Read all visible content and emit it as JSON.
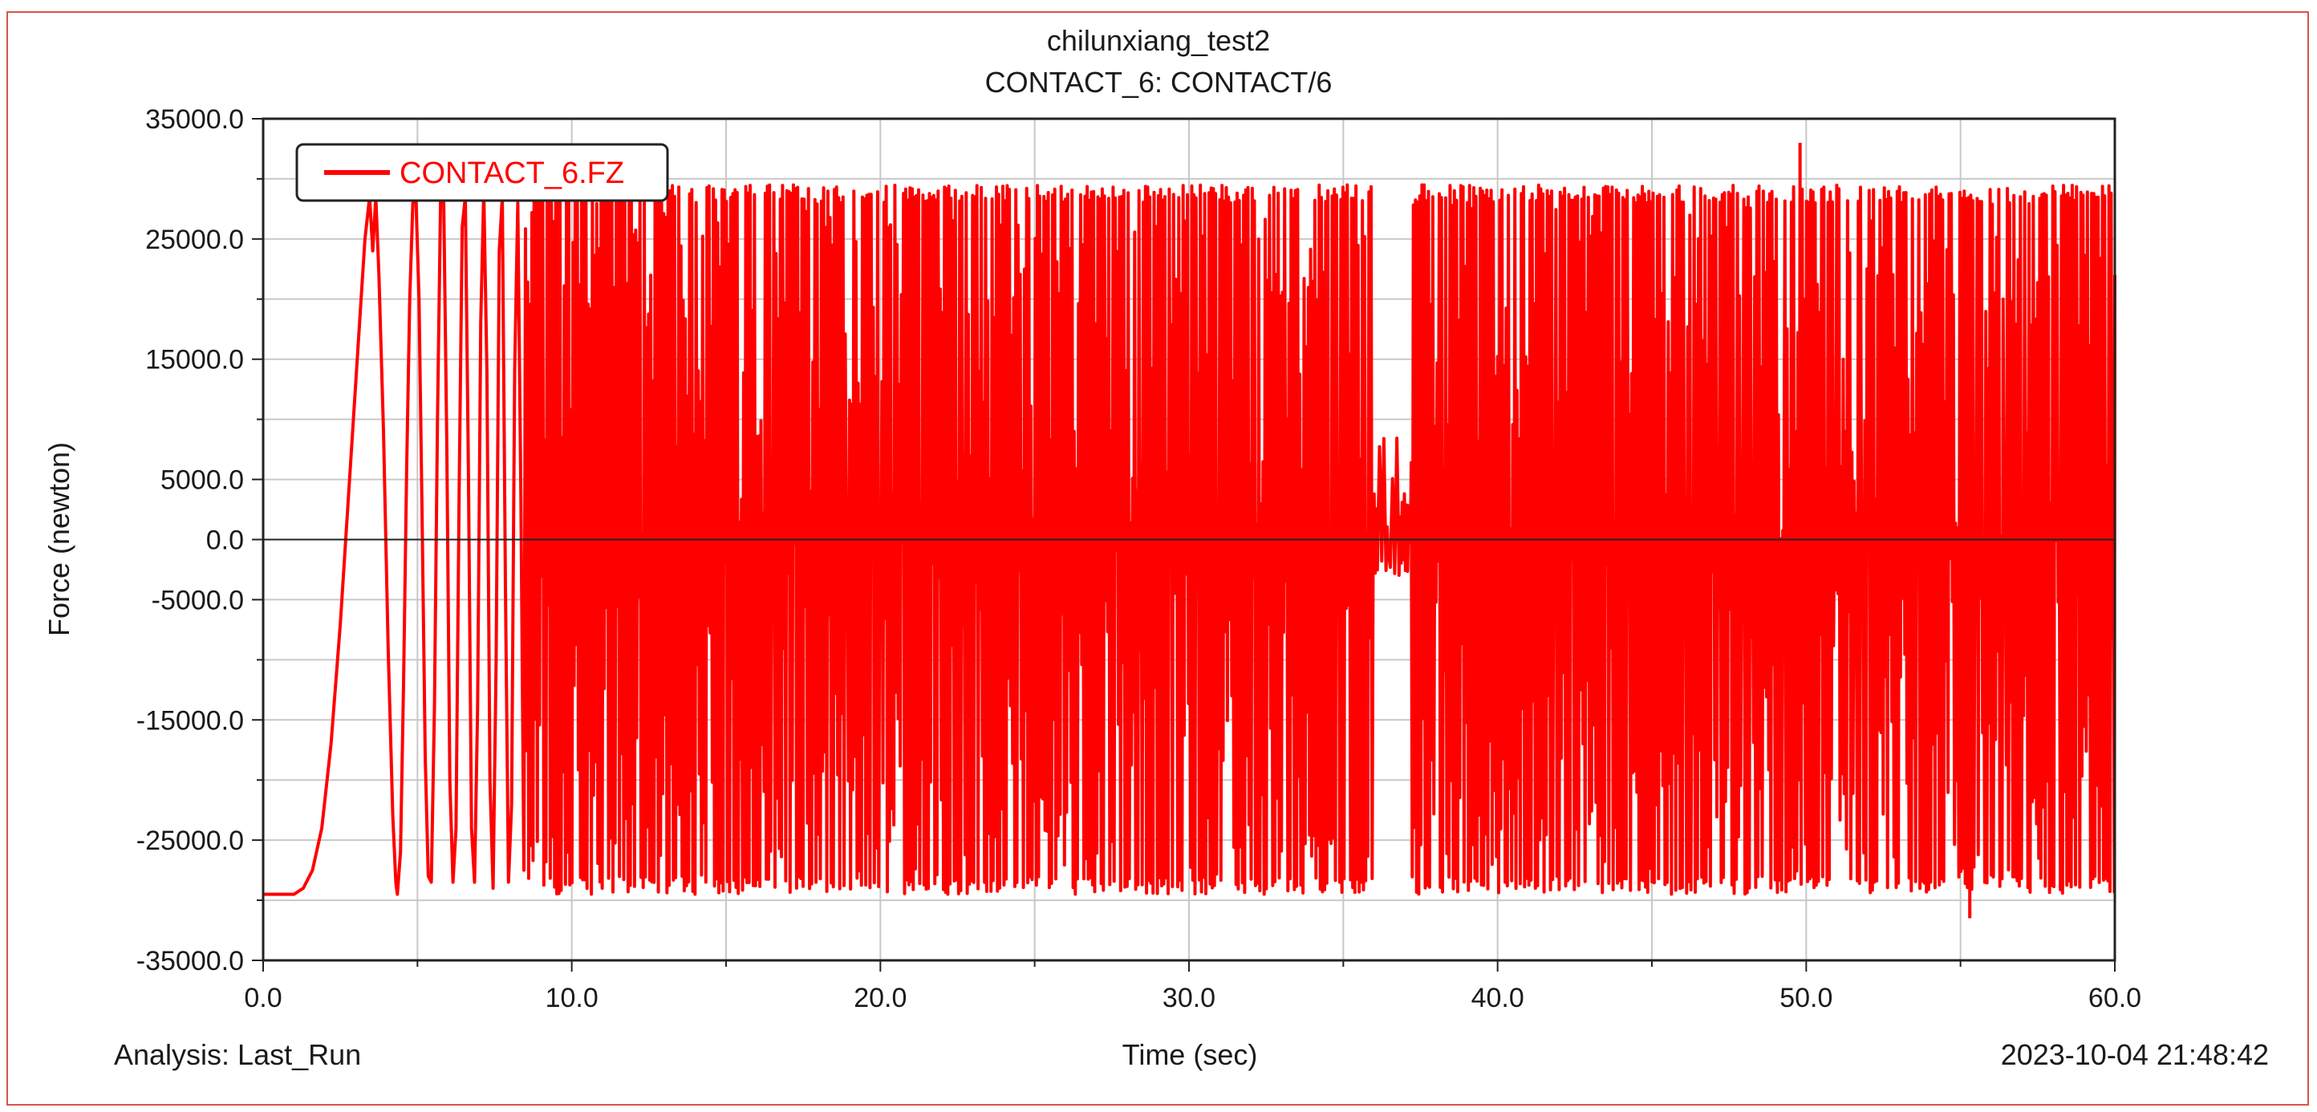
{
  "chart_data": {
    "type": "line",
    "title": "chilunxiang_test2",
    "subtitle": "CONTACT_6: CONTACT/6",
    "xlabel": "Time (sec)",
    "ylabel": "Force (newton)",
    "xlim": [
      0,
      60
    ],
    "ylim": [
      -35000,
      35000
    ],
    "x_ticks": [
      "0.0",
      "10.0",
      "20.0",
      "30.0",
      "40.0",
      "50.0",
      "60.0"
    ],
    "y_ticks": [
      "35000.0",
      "25000.0",
      "15000.0",
      "5000.0",
      "0.0",
      "-5000.0",
      "-15000.0",
      "-25000.0",
      "-35000.0"
    ],
    "grid": true,
    "legend_position": "top-left",
    "series": [
      {
        "name": "CONTACT_6.FZ",
        "color": "#ff0000",
        "points": [
          [
            0.0,
            -29500
          ],
          [
            1.0,
            -29500
          ],
          [
            1.3,
            -29000
          ],
          [
            1.6,
            -27500
          ],
          [
            1.9,
            -24000
          ],
          [
            2.2,
            -17000
          ],
          [
            2.5,
            -7000
          ],
          [
            2.8,
            5000
          ],
          [
            3.1,
            17000
          ],
          [
            3.3,
            25000
          ],
          [
            3.45,
            28500
          ],
          [
            3.55,
            24000
          ],
          [
            3.65,
            28500
          ],
          [
            3.75,
            22000
          ],
          [
            3.9,
            9000
          ],
          [
            4.05,
            -9000
          ],
          [
            4.2,
            -23000
          ],
          [
            4.3,
            -28500
          ],
          [
            4.35,
            -29500
          ],
          [
            4.45,
            -26000
          ],
          [
            4.55,
            -12000
          ],
          [
            4.65,
            6000
          ],
          [
            4.75,
            20000
          ],
          [
            4.85,
            28000
          ],
          [
            4.95,
            28500
          ],
          [
            5.05,
            20000
          ],
          [
            5.15,
            2000
          ],
          [
            5.25,
            -18000
          ],
          [
            5.35,
            -28000
          ],
          [
            5.45,
            -28500
          ],
          [
            5.55,
            -14000
          ],
          [
            5.65,
            10000
          ],
          [
            5.75,
            28500
          ],
          [
            5.85,
            28500
          ],
          [
            5.95,
            8000
          ],
          [
            6.05,
            -20000
          ],
          [
            6.15,
            -28500
          ],
          [
            6.25,
            -24000
          ],
          [
            6.35,
            4000
          ],
          [
            6.45,
            26000
          ],
          [
            6.55,
            28500
          ],
          [
            6.65,
            6000
          ],
          [
            6.75,
            -24000
          ],
          [
            6.85,
            -28500
          ],
          [
            6.95,
            -14000
          ],
          [
            7.05,
            18000
          ],
          [
            7.15,
            29000
          ],
          [
            7.25,
            14000
          ],
          [
            7.35,
            -20000
          ],
          [
            7.45,
            -29000
          ],
          [
            7.55,
            -10000
          ],
          [
            7.65,
            24000
          ],
          [
            7.75,
            28500
          ],
          [
            7.85,
            -4000
          ],
          [
            7.95,
            -28500
          ],
          [
            8.05,
            -22000
          ],
          [
            8.15,
            14000
          ],
          [
            8.25,
            28000
          ],
          [
            8.35,
            4000
          ],
          [
            8.45,
            -27500
          ]
        ],
        "dense_segments": [
          {
            "x_range": [
              8.5,
              29.6
            ],
            "amplitude_note": "dense oscillation",
            "upper_envelope": 29500,
            "lower_envelope": -29500
          },
          {
            "x_range": [
              29.6,
              36.0
            ],
            "amplitude_note": "dense oscillation",
            "upper_envelope": 29500,
            "lower_envelope": -29500
          },
          {
            "x_range": [
              36.0,
              37.2
            ],
            "amplitude_note": "reduced oscillation",
            "upper_envelope": 4000,
            "lower_envelope": -3000
          },
          {
            "x_range": [
              37.2,
              60.0
            ],
            "amplitude_note": "dense oscillation",
            "upper_envelope": 29500,
            "lower_envelope": -29500
          }
        ],
        "peak": [
          49.8,
          33000
        ],
        "trough": [
          55.3,
          -31500
        ],
        "end_value": [
          60.0,
          22000
        ]
      }
    ]
  },
  "footer": {
    "analysis": "Analysis:  Last_Run",
    "timestamp": "2023-10-04 21:48:42"
  }
}
